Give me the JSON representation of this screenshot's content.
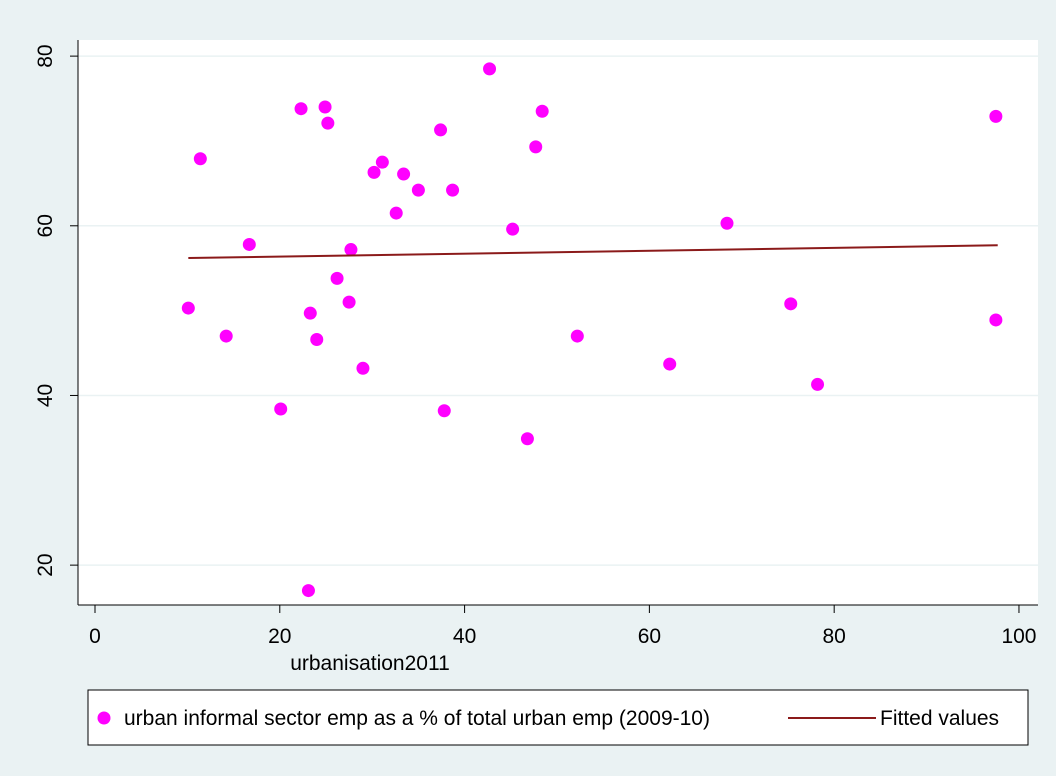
{
  "chart_data": {
    "type": "scatter",
    "x_label": "urbanisation2011",
    "xlim": [
      -1.84,
      102.06
    ],
    "ylim": [
      15.3,
      81.9
    ],
    "xticks": [
      0,
      20,
      40,
      60,
      80,
      100
    ],
    "yticks": [
      20,
      40,
      60,
      80
    ],
    "grid": true,
    "series": [
      {
        "name": "urban informal sector emp as a % of total urban emp (2009-10)",
        "color": "#ff00ff",
        "type": "scatter",
        "x": [
          10.1,
          11.4,
          14.2,
          16.7,
          20.1,
          22.3,
          23.1,
          23.3,
          24.0,
          24.9,
          25.2,
          26.2,
          27.5,
          27.7,
          29.0,
          30.2,
          31.1,
          32.6,
          33.4,
          35.0,
          37.4,
          37.8,
          38.7,
          42.7,
          45.2,
          46.8,
          47.7,
          48.4,
          52.2,
          62.2,
          68.4,
          75.3,
          78.2,
          97.5,
          97.5
        ],
        "values": [
          50.3,
          67.9,
          47.0,
          57.8,
          38.4,
          73.8,
          17.0,
          49.7,
          46.6,
          74.0,
          72.1,
          53.8,
          51.0,
          57.2,
          43.2,
          66.3,
          67.5,
          61.5,
          66.1,
          64.2,
          71.3,
          38.2,
          64.2,
          78.5,
          59.6,
          34.9,
          69.3,
          73.5,
          47.0,
          43.7,
          60.3,
          50.8,
          41.3,
          72.9,
          48.9
        ]
      },
      {
        "name": "Fitted values",
        "color": "#8b1a1a",
        "type": "line",
        "x": [
          10.1,
          97.7
        ],
        "values": [
          56.2,
          57.7
        ]
      }
    ]
  }
}
